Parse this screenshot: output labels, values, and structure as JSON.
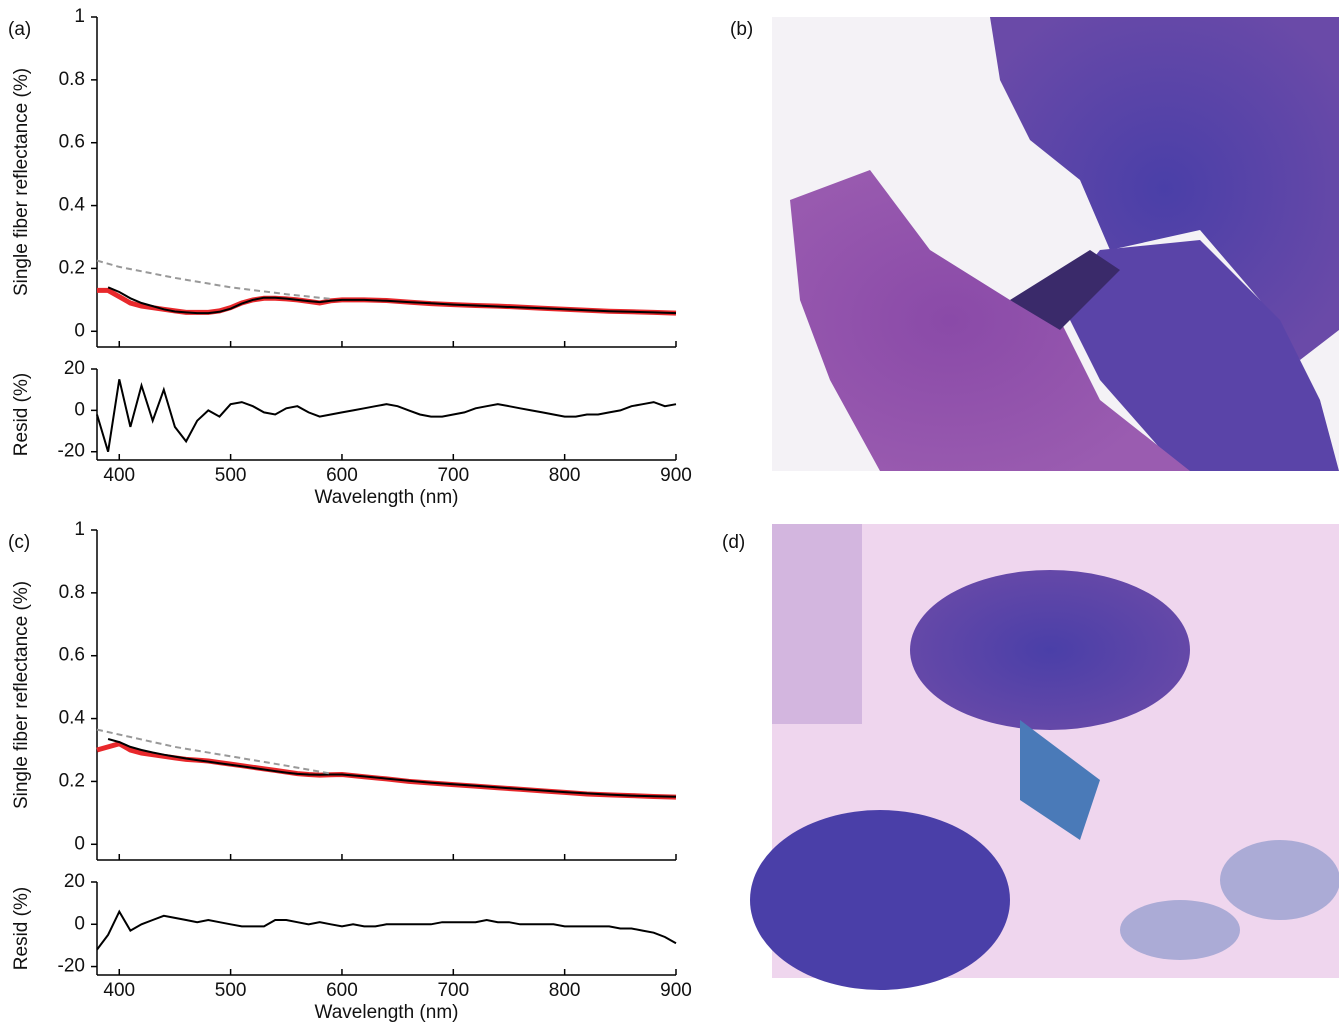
{
  "chart_data": [
    {
      "type": "line",
      "panel_label": "(a)",
      "ylabel": "Single fiber reflectance (%)",
      "xlim": [
        380,
        900
      ],
      "ylim": [
        -0.05,
        1
      ],
      "yticks": [
        0,
        0.2,
        0.4,
        0.6,
        0.8,
        1
      ],
      "x": [
        380,
        390,
        400,
        410,
        420,
        430,
        440,
        450,
        460,
        470,
        480,
        490,
        500,
        510,
        520,
        530,
        540,
        550,
        560,
        570,
        580,
        590,
        600,
        620,
        640,
        660,
        680,
        700,
        720,
        740,
        760,
        780,
        800,
        820,
        840,
        860,
        880,
        900
      ],
      "series": [
        {
          "color": "#e8282b",
          "style": "measured",
          "values": [
            0.13,
            0.13,
            0.11,
            0.09,
            0.08,
            0.075,
            0.07,
            0.065,
            0.06,
            0.06,
            0.06,
            0.065,
            0.075,
            0.09,
            0.1,
            0.105,
            0.105,
            0.103,
            0.1,
            0.095,
            0.09,
            0.097,
            0.1,
            0.1,
            0.098,
            0.093,
            0.088,
            0.085,
            0.082,
            0.08,
            0.077,
            0.073,
            0.07,
            0.067,
            0.064,
            0.062,
            0.06,
            0.058
          ]
        },
        {
          "color": "#000000",
          "style": "fit",
          "values": [
            null,
            0.14,
            0.125,
            0.105,
            0.09,
            0.08,
            0.07,
            0.063,
            0.06,
            0.058,
            0.058,
            0.062,
            0.072,
            0.088,
            0.1,
            0.107,
            0.107,
            0.104,
            0.1,
            0.096,
            0.093,
            0.097,
            0.1,
            0.1,
            0.097,
            0.093,
            0.089,
            0.085,
            0.082,
            0.079,
            0.076,
            0.073,
            0.07,
            0.067,
            0.064,
            0.062,
            0.06,
            0.058
          ]
        },
        {
          "color": "#999999",
          "style": "dashed",
          "x": [
            380,
            400,
            450,
            500,
            550,
            590
          ],
          "values": [
            0.225,
            0.205,
            0.17,
            0.14,
            0.118,
            0.103
          ]
        }
      ]
    },
    {
      "type": "line",
      "ylabel": "Resid (%)",
      "xlabel": "Wavelength (nm)",
      "xlim": [
        380,
        900
      ],
      "xticks": [
        400,
        500,
        600,
        700,
        800,
        900
      ],
      "ylim": [
        -24,
        20
      ],
      "yticks": [
        -20,
        0,
        20
      ],
      "x": [
        380,
        390,
        400,
        410,
        420,
        430,
        440,
        450,
        460,
        470,
        480,
        490,
        500,
        510,
        520,
        530,
        540,
        550,
        560,
        570,
        580,
        590,
        600,
        610,
        620,
        630,
        640,
        650,
        660,
        670,
        680,
        690,
        700,
        710,
        720,
        730,
        740,
        750,
        760,
        770,
        780,
        790,
        800,
        810,
        820,
        830,
        840,
        850,
        860,
        870,
        880,
        890,
        900
      ],
      "series": [
        {
          "color": "#000000",
          "style": "fit",
          "values": [
            -2,
            -20,
            15,
            -8,
            12,
            -5,
            10,
            -8,
            -15,
            -5,
            0,
            -3,
            3,
            4,
            2,
            -1,
            -2,
            1,
            2,
            -1,
            -3,
            -2,
            -1,
            0,
            1,
            2,
            3,
            2,
            0,
            -2,
            -3,
            -3,
            -2,
            -1,
            1,
            2,
            3,
            2,
            1,
            0,
            -1,
            -2,
            -3,
            -3,
            -2,
            -2,
            -1,
            0,
            2,
            3,
            4,
            2,
            3
          ]
        }
      ]
    },
    {
      "type": "line",
      "panel_label": "(c)",
      "ylabel": "Single fiber reflectance (%)",
      "xlim": [
        380,
        900
      ],
      "ylim": [
        -0.05,
        1
      ],
      "yticks": [
        0,
        0.2,
        0.4,
        0.6,
        0.8,
        1
      ],
      "x": [
        380,
        390,
        400,
        410,
        420,
        430,
        440,
        450,
        460,
        470,
        480,
        490,
        500,
        510,
        520,
        530,
        540,
        550,
        560,
        570,
        580,
        590,
        600,
        620,
        640,
        660,
        680,
        700,
        720,
        740,
        760,
        780,
        800,
        820,
        840,
        860,
        880,
        900
      ],
      "series": [
        {
          "color": "#e8282b",
          "style": "measured",
          "values": [
            0.3,
            0.31,
            0.32,
            0.3,
            0.29,
            0.285,
            0.28,
            0.275,
            0.27,
            0.268,
            0.265,
            0.26,
            0.255,
            0.25,
            0.245,
            0.24,
            0.235,
            0.23,
            0.225,
            0.222,
            0.22,
            0.221,
            0.222,
            0.215,
            0.208,
            0.2,
            0.195,
            0.19,
            0.185,
            0.18,
            0.175,
            0.17,
            0.165,
            0.16,
            0.157,
            0.155,
            0.152,
            0.15
          ]
        },
        {
          "color": "#000000",
          "style": "fit",
          "values": [
            null,
            0.335,
            0.325,
            0.31,
            0.3,
            0.292,
            0.285,
            0.279,
            0.273,
            0.268,
            0.263,
            0.258,
            0.253,
            0.248,
            0.243,
            0.238,
            0.233,
            0.228,
            0.224,
            0.222,
            0.221,
            0.222,
            0.222,
            0.216,
            0.209,
            0.202,
            0.196,
            0.191,
            0.186,
            0.181,
            0.176,
            0.171,
            0.166,
            0.162,
            0.158,
            0.155,
            0.153,
            0.151
          ]
        },
        {
          "color": "#999999",
          "style": "dashed",
          "x": [
            380,
            450,
            500,
            550,
            590
          ],
          "values": [
            0.365,
            0.31,
            0.28,
            0.25,
            0.225
          ]
        }
      ]
    },
    {
      "type": "line",
      "ylabel": "Resid (%)",
      "xlabel": "Wavelength (nm)",
      "xlim": [
        380,
        900
      ],
      "xticks": [
        400,
        500,
        600,
        700,
        800,
        900
      ],
      "ylim": [
        -24,
        20
      ],
      "yticks": [
        -20,
        0,
        20
      ],
      "x": [
        380,
        390,
        400,
        410,
        420,
        430,
        440,
        450,
        460,
        470,
        480,
        490,
        500,
        510,
        520,
        530,
        540,
        550,
        560,
        570,
        580,
        590,
        600,
        610,
        620,
        630,
        640,
        650,
        660,
        670,
        680,
        690,
        700,
        710,
        720,
        730,
        740,
        750,
        760,
        770,
        780,
        790,
        800,
        810,
        820,
        830,
        840,
        850,
        860,
        870,
        880,
        890,
        900
      ],
      "series": [
        {
          "color": "#000000",
          "style": "fit",
          "values": [
            -12,
            -5,
            6,
            -3,
            0,
            2,
            4,
            3,
            2,
            1,
            2,
            1,
            0,
            -1,
            -1,
            -1,
            2,
            2,
            1,
            0,
            1,
            0,
            -1,
            0,
            -1,
            -1,
            0,
            0,
            0,
            0,
            0,
            1,
            1,
            1,
            1,
            2,
            1,
            1,
            0,
            0,
            0,
            0,
            -1,
            -1,
            -1,
            -1,
            -1,
            -2,
            -2,
            -3,
            -4,
            -6,
            -9
          ]
        }
      ]
    }
  ],
  "panels": [
    {
      "label": "(b)"
    },
    {
      "label": "(d)"
    }
  ]
}
